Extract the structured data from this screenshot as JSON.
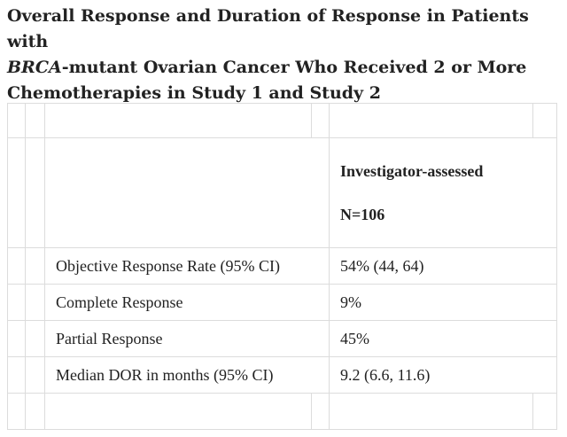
{
  "title": {
    "line1": "Overall Response and Duration of Response in Patients with",
    "line2_italic": "BRCA",
    "line2_rest": "-mutant Ovarian Cancer Who Received 2 or More",
    "line3": "Chemotherapies in Study 1 and Study 2"
  },
  "table": {
    "header": {
      "line1": "Investigator-assessed",
      "line2": "N=106"
    },
    "rows": [
      {
        "label": "Objective Response Rate (95% CI)",
        "value": "54% (44, 64)"
      },
      {
        "label": "Complete Response",
        "value": "9%"
      },
      {
        "label": "Partial Response",
        "value": "45%"
      },
      {
        "label": "Median DOR in months (95% CI)",
        "value": "9.2 (6.6, 11.6)"
      }
    ]
  }
}
